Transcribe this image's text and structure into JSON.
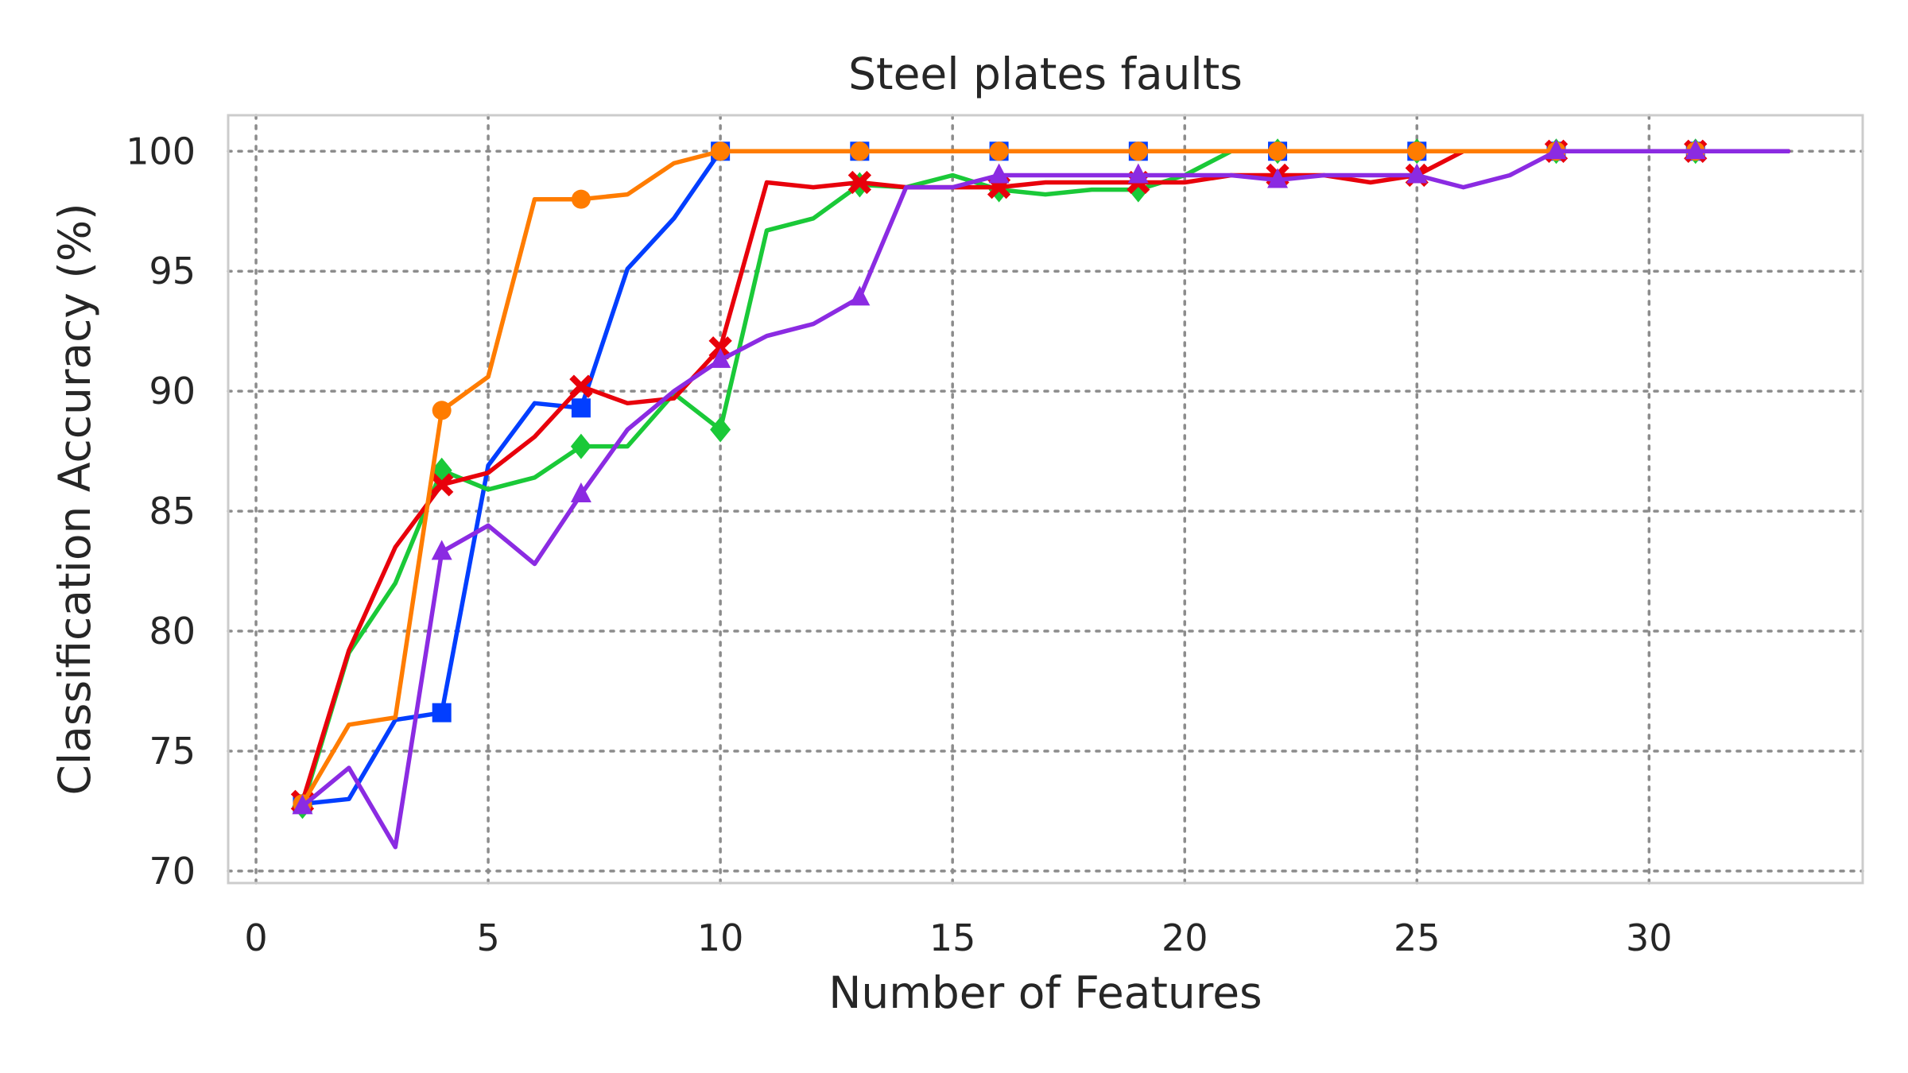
{
  "chart_data": {
    "type": "line",
    "title": "Steel plates faults",
    "xlabel": "Number of Features",
    "ylabel": "Classification Accuracy (%)",
    "xlim": [
      -0.6,
      34.6
    ],
    "ylim": [
      69.5,
      101.5
    ],
    "xticks": [
      0,
      5,
      10,
      15,
      20,
      25,
      30
    ],
    "yticks": [
      70,
      75,
      80,
      85,
      90,
      95,
      100
    ],
    "grid": true,
    "series": [
      {
        "color": "#023eff",
        "marker": "square",
        "marker_every": 3,
        "x": [
          1,
          2,
          3,
          4,
          5,
          6,
          7,
          8,
          9,
          10,
          11,
          12,
          13,
          14,
          15,
          16,
          17,
          18,
          19,
          20,
          21,
          22,
          23,
          24,
          25,
          26,
          27,
          28,
          29,
          30,
          31,
          32,
          33
        ],
        "y": [
          72.8,
          73.0,
          76.3,
          76.6,
          86.9,
          89.5,
          89.3,
          95.1,
          97.2,
          100,
          100,
          100,
          100,
          100,
          100,
          100,
          100,
          100,
          100,
          100,
          100,
          100,
          100,
          100,
          100,
          100,
          100,
          100,
          100,
          100,
          100,
          100,
          100
        ]
      },
      {
        "color": "#1ac938",
        "marker": "diamond",
        "marker_every": 3,
        "x": [
          1,
          2,
          3,
          4,
          5,
          6,
          7,
          8,
          9,
          10,
          11,
          12,
          13,
          14,
          15,
          16,
          17,
          18,
          19,
          20,
          21,
          22,
          23,
          24,
          25,
          26,
          27,
          28,
          29,
          30,
          31,
          32,
          33
        ],
        "y": [
          72.7,
          79.1,
          82.0,
          86.7,
          85.9,
          86.4,
          87.7,
          87.7,
          89.9,
          88.4,
          96.7,
          97.2,
          98.6,
          98.5,
          99.0,
          98.4,
          98.2,
          98.4,
          98.4,
          99.0,
          100,
          100,
          100,
          100,
          100,
          100,
          100,
          100,
          100,
          100,
          100,
          100,
          100
        ]
      },
      {
        "color": "#e8000b",
        "marker": "x",
        "marker_every": 3,
        "x": [
          1,
          2,
          3,
          4,
          5,
          6,
          7,
          8,
          9,
          10,
          11,
          12,
          13,
          14,
          15,
          16,
          17,
          18,
          19,
          20,
          21,
          22,
          23,
          24,
          25,
          26,
          27,
          28,
          29,
          30,
          31,
          32,
          33
        ],
        "y": [
          72.9,
          79.2,
          83.5,
          86.1,
          86.6,
          88.1,
          90.2,
          89.5,
          89.7,
          91.8,
          98.7,
          98.5,
          98.7,
          98.5,
          98.5,
          98.5,
          98.7,
          98.7,
          98.7,
          98.7,
          99.0,
          99.0,
          99.0,
          98.7,
          99.0,
          100,
          100,
          100,
          100,
          100,
          100,
          100,
          100
        ]
      },
      {
        "color": "#ff7c00",
        "marker": "circle",
        "marker_every": 3,
        "x": [
          1,
          2,
          3,
          4,
          5,
          6,
          7,
          8,
          9,
          10,
          11,
          12,
          13,
          14,
          15,
          16,
          17,
          18,
          19,
          20,
          21,
          22,
          23,
          24,
          25,
          26,
          27,
          28,
          29,
          30,
          31,
          32,
          33
        ],
        "y": [
          72.8,
          76.1,
          76.4,
          89.2,
          90.6,
          98.0,
          98.0,
          98.2,
          99.5,
          100,
          100,
          100,
          100,
          100,
          100,
          100,
          100,
          100,
          100,
          100,
          100,
          100,
          100,
          100,
          100,
          100,
          100,
          100,
          100,
          100,
          100,
          100,
          100
        ]
      },
      {
        "color": "#8b2be2",
        "marker": "triangle",
        "marker_every": 3,
        "x": [
          1,
          2,
          3,
          4,
          5,
          6,
          7,
          8,
          9,
          10,
          11,
          12,
          13,
          14,
          15,
          16,
          17,
          18,
          19,
          20,
          21,
          22,
          23,
          24,
          25,
          26,
          27,
          28,
          29,
          30,
          31,
          32,
          33
        ],
        "y": [
          72.7,
          74.3,
          71.0,
          83.3,
          84.4,
          82.8,
          85.7,
          88.4,
          90.0,
          91.3,
          92.3,
          92.8,
          93.9,
          98.5,
          98.5,
          99.0,
          99.0,
          99.0,
          99.0,
          99.0,
          99.0,
          98.8,
          99.0,
          99.0,
          99.0,
          98.5,
          99.0,
          100,
          100,
          100,
          100,
          100,
          100
        ]
      }
    ]
  }
}
